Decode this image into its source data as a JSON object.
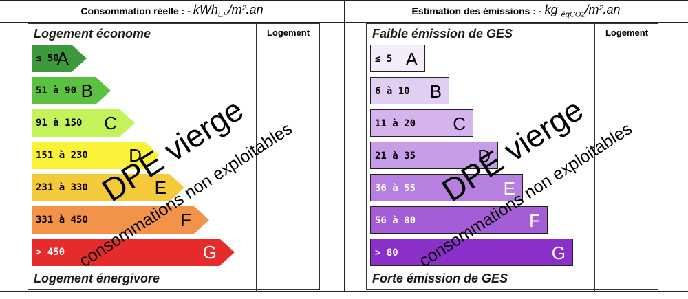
{
  "energy": {
    "header_label": "Consommation réelle : -",
    "header_unit": "kWh",
    "header_unit_sub": "EP",
    "header_unit_tail": "/m².an",
    "top_caption": "Logement économe",
    "bottom_caption": "Logement énergivore",
    "logement_label": "Logement",
    "classes": [
      {
        "range": "≤ 50",
        "letter": "A",
        "color": "#3c9a3c"
      },
      {
        "range": "51 à 90",
        "letter": "B",
        "color": "#5cc13f"
      },
      {
        "range": "91 à 150",
        "letter": "C",
        "color": "#c4f25a"
      },
      {
        "range": "151 à 230",
        "letter": "D",
        "color": "#f9f238"
      },
      {
        "range": "231 à 330",
        "letter": "E",
        "color": "#f5ca3a"
      },
      {
        "range": "331 à 450",
        "letter": "F",
        "color": "#f3934a"
      },
      {
        "range": "> 450",
        "letter": "G",
        "color": "#e52b2b"
      }
    ]
  },
  "ges": {
    "header_label": "Estimation des émissions : -",
    "header_unit": "kg",
    "header_unit_sub": "éqCO2",
    "header_unit_tail": "/m².an",
    "top_caption": "Faible émission de GES",
    "bottom_caption": "Forte émission de GES",
    "logement_label": "Logement",
    "classes": [
      {
        "range": "≤ 5",
        "letter": "A",
        "color": "#f4ecfb"
      },
      {
        "range": "6 à 10",
        "letter": "B",
        "color": "#e2cdf3"
      },
      {
        "range": "11 à 20",
        "letter": "C",
        "color": "#d5b4ee"
      },
      {
        "range": "21 à 35",
        "letter": "D",
        "color": "#c79de8"
      },
      {
        "range": "36 à 55",
        "letter": "E",
        "color": "#b77fe0"
      },
      {
        "range": "56 à 80",
        "letter": "F",
        "color": "#a45dd6"
      },
      {
        "range": "> 80",
        "letter": "G",
        "color": "#8a2fc9"
      }
    ]
  },
  "watermark": {
    "main": "DPE vierge",
    "sub": "consommations non exploitables"
  }
}
